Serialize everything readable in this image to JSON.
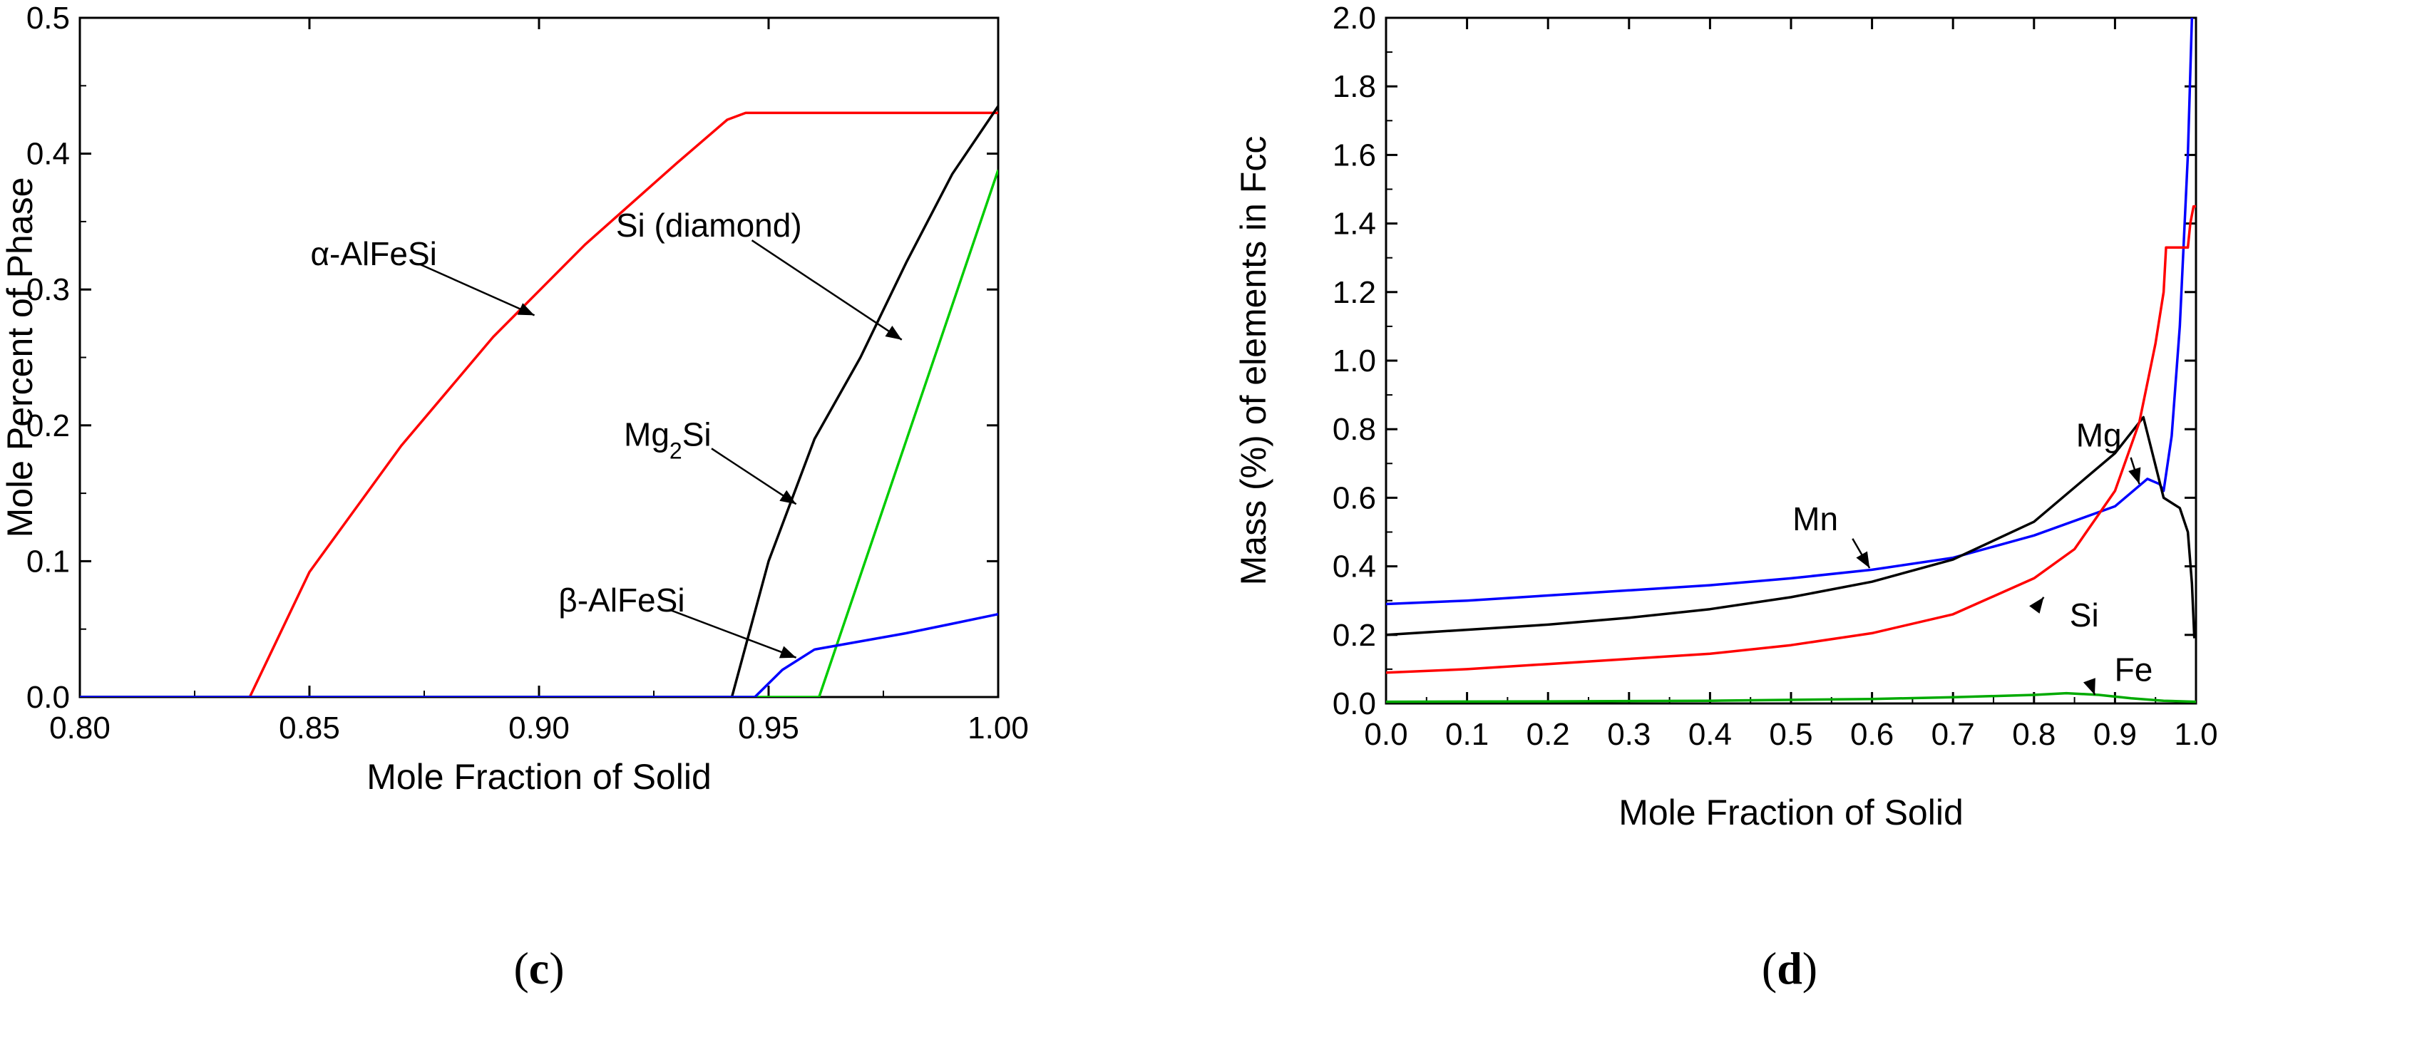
{
  "chart_data": [
    {
      "type": "line",
      "panel": "(c)",
      "panel_letter": "c",
      "xlabel": "Mole Fraction of Solid",
      "ylabel": "Mole Percent of Phase",
      "xlim": [
        0.8,
        1.0
      ],
      "ylim": [
        0.0,
        0.5
      ],
      "xticks": [
        0.8,
        0.85,
        0.9,
        0.95,
        1.0
      ],
      "xtick_labels": [
        "0.80",
        "0.85",
        "0.90",
        "0.95",
        "1.00"
      ],
      "yticks": [
        0.0,
        0.1,
        0.2,
        0.3,
        0.4,
        0.5
      ],
      "ytick_labels": [
        "0.0",
        "0.1",
        "0.2",
        "0.3",
        "0.4",
        "0.5"
      ],
      "series": [
        {
          "name": "α-AlFeSi",
          "color": "#ff0000",
          "x": [
            0.8,
            0.837,
            0.85,
            0.87,
            0.89,
            0.91,
            0.93,
            0.941,
            0.945,
            0.96,
            0.98,
            1.0
          ],
          "y": [
            0.0,
            0.0,
            0.092,
            0.185,
            0.265,
            0.333,
            0.393,
            0.425,
            0.43,
            0.43,
            0.43,
            0.43
          ]
        },
        {
          "name": "Mg2Si",
          "color": "#000000",
          "x": [
            0.8,
            0.942,
            0.95,
            0.96,
            0.97,
            0.98,
            0.99,
            1.0
          ],
          "y": [
            0.0,
            0.0,
            0.1,
            0.19,
            0.25,
            0.32,
            0.385,
            0.435
          ]
        },
        {
          "name": "Si (diamond)",
          "color": "#00cc00",
          "x": [
            0.8,
            0.961,
            1.0
          ],
          "y": [
            0.0,
            0.0,
            0.388
          ]
        },
        {
          "name": "β-AlFeSi",
          "color": "#0000ff",
          "x": [
            0.8,
            0.947,
            0.953,
            0.96,
            0.97,
            0.98,
            0.99,
            1.0
          ],
          "y": [
            0.0,
            0.0,
            0.02,
            0.035,
            0.041,
            0.047,
            0.054,
            0.061
          ]
        }
      ],
      "annotations": [
        {
          "text": "α-AlFeSi",
          "label_at": [
            0.864,
            0.318
          ],
          "arrow_to": [
            0.899,
            0.281
          ]
        },
        {
          "text": "Si (diamond)",
          "label_at": [
            0.937,
            0.339
          ],
          "arrow_to": [
            0.979,
            0.263
          ]
        },
        {
          "text": "Mg",
          "sub": "2",
          "text_after": "Si",
          "label_at": [
            0.928,
            0.185
          ],
          "arrow_to": [
            0.956,
            0.142
          ]
        },
        {
          "text": "β-AlFeSi",
          "label_at": [
            0.918,
            0.063
          ],
          "arrow_to": [
            0.956,
            0.029
          ]
        }
      ]
    },
    {
      "type": "line",
      "panel": "(d)",
      "panel_letter": "d",
      "xlabel": "Mole Fraction of Solid",
      "ylabel": "Mass (%) of elements in Fcc",
      "xlim": [
        0.0,
        1.0
      ],
      "ylim": [
        0.0,
        2.0
      ],
      "xticks": [
        0.0,
        0.1,
        0.2,
        0.3,
        0.4,
        0.5,
        0.6,
        0.7,
        0.8,
        0.9,
        1.0
      ],
      "xtick_labels": [
        "0.0",
        "0.1",
        "0.2",
        "0.3",
        "0.4",
        "0.5",
        "0.6",
        "0.7",
        "0.8",
        "0.9",
        "1.0"
      ],
      "yticks": [
        0.0,
        0.2,
        0.4,
        0.6,
        0.8,
        1.0,
        1.2,
        1.4,
        1.6,
        1.8,
        2.0
      ],
      "ytick_labels": [
        "0.0",
        "0.2",
        "0.4",
        "0.6",
        "0.8",
        "1.0",
        "1.2",
        "1.4",
        "1.6",
        "1.8",
        "2.0"
      ],
      "series": [
        {
          "name": "Mn",
          "color": "#0000ff",
          "x": [
            0.0,
            0.1,
            0.2,
            0.3,
            0.4,
            0.5,
            0.6,
            0.7,
            0.8,
            0.9,
            0.94,
            0.955,
            0.96,
            0.97,
            0.98,
            0.99,
            0.995
          ],
          "y": [
            0.29,
            0.3,
            0.315,
            0.33,
            0.345,
            0.365,
            0.39,
            0.425,
            0.49,
            0.575,
            0.655,
            0.64,
            0.62,
            0.78,
            1.1,
            1.6,
            2.0
          ]
        },
        {
          "name": "Mg",
          "color": "#000000",
          "x": [
            0.0,
            0.1,
            0.2,
            0.3,
            0.4,
            0.5,
            0.6,
            0.7,
            0.8,
            0.9,
            0.935,
            0.96,
            0.98,
            0.99,
            0.995,
            0.998
          ],
          "y": [
            0.2,
            0.215,
            0.23,
            0.25,
            0.275,
            0.31,
            0.355,
            0.42,
            0.53,
            0.73,
            0.835,
            0.6,
            0.57,
            0.5,
            0.35,
            0.19
          ]
        },
        {
          "name": "Si",
          "color": "#ff0000",
          "x": [
            0.0,
            0.1,
            0.2,
            0.3,
            0.4,
            0.5,
            0.6,
            0.7,
            0.8,
            0.85,
            0.9,
            0.93,
            0.95,
            0.96,
            0.963,
            0.99,
            0.993,
            0.997,
            1.0
          ],
          "y": [
            0.09,
            0.1,
            0.115,
            0.13,
            0.145,
            0.17,
            0.205,
            0.26,
            0.365,
            0.45,
            0.62,
            0.82,
            1.05,
            1.2,
            1.33,
            1.33,
            1.4,
            1.45,
            1.45
          ]
        },
        {
          "name": "Fe",
          "color": "#00aa00",
          "x": [
            0.0,
            0.2,
            0.4,
            0.6,
            0.7,
            0.8,
            0.84,
            0.88,
            0.92,
            0.96,
            1.0
          ],
          "y": [
            0.005,
            0.006,
            0.008,
            0.013,
            0.018,
            0.025,
            0.03,
            0.025,
            0.015,
            0.008,
            0.005
          ]
        }
      ],
      "annotations": [
        {
          "text": "Mg",
          "label_at": [
            0.88,
            0.75
          ],
          "arrow_to": [
            0.93,
            0.64
          ]
        },
        {
          "text": "Mn",
          "label_at": [
            0.53,
            0.505
          ],
          "arrow_to": [
            0.597,
            0.395
          ]
        },
        {
          "text": "Si",
          "label_at": [
            0.862,
            0.225
          ],
          "arrow_to": [
            0.812,
            0.31
          ]
        },
        {
          "text": "Fe",
          "label_at": [
            0.923,
            0.065
          ],
          "arrow_to": [
            0.875,
            0.025
          ]
        }
      ]
    }
  ]
}
